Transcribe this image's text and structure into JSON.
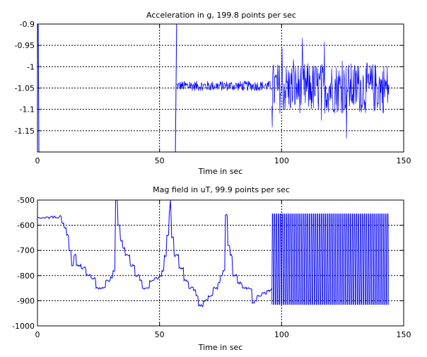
{
  "chart_data": [
    {
      "type": "line",
      "title": "Acceleration in g, 199.8 points per sec",
      "xlabel": "Time in sec",
      "ylabel": "",
      "xlim": [
        0,
        150
      ],
      "ylim": [
        -1.2,
        -0.9
      ],
      "xticks": [
        0,
        50,
        100,
        150
      ],
      "yticks": [
        -0.9,
        -0.95,
        -1,
        -1.05,
        -1.1,
        -1.15
      ],
      "xtick_labels": [
        "0",
        "50",
        "100",
        "150"
      ],
      "ytick_labels": [
        "-0.9",
        "-0.95",
        "-1",
        "-1.05",
        "-1.1",
        "-1.15"
      ],
      "grid": true,
      "line_color": "#0000ff",
      "segments": [
        {
          "x": [
            0,
            0.3
          ],
          "y": [
            -0.9,
            -0.9
          ],
          "kind": "flat"
        },
        {
          "x": [
            0.3,
            0.6
          ],
          "y": [
            -0.9,
            -1.2
          ],
          "kind": "drop"
        },
        {
          "x": [
            56.5,
            57.0
          ],
          "y": [
            -1.2,
            -0.9
          ],
          "kind": "spike"
        },
        {
          "x": [
            57.0,
            96.0
          ],
          "center": -1.045,
          "amplitude": 0.012,
          "kind": "noise"
        },
        {
          "x": [
            96.0,
            144.0
          ],
          "center": -1.05,
          "amplitude": 0.06,
          "kind": "noise"
        }
      ]
    },
    {
      "type": "line",
      "title": "Mag field in uT, 99.9 points per sec",
      "xlabel": "Time in sec",
      "ylabel": "",
      "xlim": [
        0,
        150
      ],
      "ylim": [
        -1000,
        -500
      ],
      "xticks": [
        0,
        50,
        100,
        150
      ],
      "yticks": [
        -500,
        -600,
        -700,
        -800,
        -900,
        -1000
      ],
      "xtick_labels": [
        "0",
        "50",
        "100",
        "150"
      ],
      "ytick_labels": [
        "-500",
        "-600",
        "-700",
        "-800",
        "-900",
        "-1000"
      ],
      "grid": true,
      "line_color": "#0000ff",
      "x": [
        0,
        2,
        5,
        9,
        10,
        11,
        12,
        13,
        14,
        15,
        16,
        18,
        20,
        21,
        22,
        24,
        26,
        28,
        30,
        31,
        32,
        33,
        34,
        35,
        36,
        38,
        40,
        42,
        43,
        44,
        46,
        48,
        50,
        51,
        52,
        53,
        54,
        54.5,
        55,
        56,
        58,
        60,
        62,
        64,
        65,
        66,
        68,
        70,
        72,
        74,
        75,
        76,
        77,
        78,
        79,
        80,
        82,
        84,
        86,
        88,
        89,
        90,
        92,
        94,
        96
      ],
      "y": [
        -570,
        -570,
        -568,
        -565,
        -590,
        -610,
        -640,
        -700,
        -760,
        -720,
        -760,
        -770,
        -800,
        -800,
        -810,
        -850,
        -850,
        -820,
        -805,
        -780,
        -500,
        -600,
        -660,
        -690,
        -720,
        -760,
        -800,
        -820,
        -850,
        -850,
        -820,
        -810,
        -800,
        -780,
        -720,
        -640,
        -550,
        -500,
        -650,
        -720,
        -770,
        -820,
        -850,
        -860,
        -880,
        -920,
        -900,
        -880,
        -850,
        -830,
        -800,
        -780,
        -560,
        -680,
        -720,
        -800,
        -830,
        -850,
        -850,
        -910,
        -900,
        -880,
        -870,
        -860,
        -850
      ],
      "oscillation": {
        "x": [
          96,
          144
        ],
        "min": -915,
        "max": -555,
        "cycles": 60
      }
    }
  ]
}
